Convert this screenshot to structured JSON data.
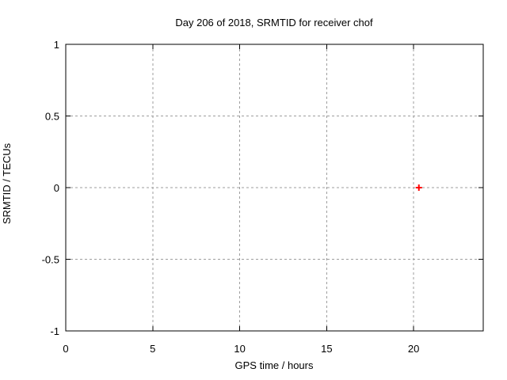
{
  "chart_data": {
    "type": "scatter",
    "title": "Day 206 of 2018, SRMTID for receiver chof",
    "xlabel": "GPS time / hours",
    "ylabel": "SRMTID / TECUs",
    "xlim": [
      0,
      24
    ],
    "ylim": [
      -1,
      1
    ],
    "grid": true,
    "legend": "none",
    "xticks": {
      "values": [
        0,
        5,
        10,
        15,
        20
      ],
      "labels": [
        "0",
        "5",
        "10",
        "15",
        "20"
      ]
    },
    "yticks": {
      "values": [
        -1,
        -0.5,
        0,
        0.5,
        1
      ],
      "labels": [
        "-1",
        "-0.5",
        "0",
        "0.5",
        "1"
      ]
    },
    "series": [
      {
        "name": "SRMTID",
        "marker": "plus",
        "color": "#ff0000",
        "points": [
          {
            "x": 20.3,
            "y": 0.0
          }
        ]
      }
    ],
    "colors": {
      "background": "#ffffff",
      "border": "#000000",
      "grid": "#9e9e9e",
      "text": "#000000",
      "marker": "#ff0000"
    }
  }
}
